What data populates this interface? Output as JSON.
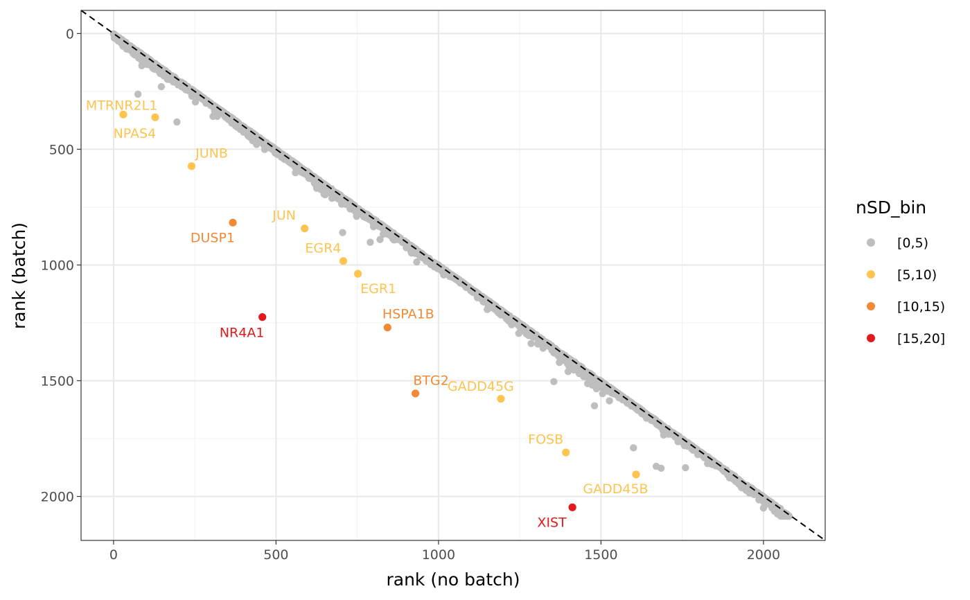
{
  "chart_data": {
    "type": "scatter",
    "title": "",
    "xlabel": "rank (no batch)",
    "ylabel": "rank (batch)",
    "xlim": [
      -100,
      2190
    ],
    "ylim": [
      -100,
      2190
    ],
    "y_reversed": true,
    "x_ticks": [
      0,
      500,
      1000,
      1500,
      2000
    ],
    "y_ticks": [
      0,
      500,
      1000,
      1500,
      2000
    ],
    "x_tick_labels": [
      "0",
      "500",
      "1000",
      "1500",
      "2000"
    ],
    "y_tick_labels": [
      "0",
      "500",
      "1000",
      "1500",
      "2000"
    ],
    "grid": true,
    "reference_line": {
      "type": "identity",
      "style": "dashed",
      "color": "#000000"
    },
    "legend": {
      "title": "nSD_bin",
      "position": "right",
      "entries": [
        {
          "label": "[0,5)",
          "color": "#BEBEBE"
        },
        {
          "label": "[5,10)",
          "color": "#FEC44F"
        },
        {
          "label": "[10,15)",
          "color": "#F28A35"
        },
        {
          "label": "[15,20]",
          "color": "#E31A1C"
        }
      ]
    },
    "background_series": {
      "bin": "[0,5)",
      "color": "#BEBEBE",
      "n_points": 2080,
      "description_free": true,
      "outliers": [
        {
          "x": 75,
          "y": 262
        },
        {
          "x": 195,
          "y": 382
        },
        {
          "x": 705,
          "y": 860
        },
        {
          "x": 790,
          "y": 902
        },
        {
          "x": 820,
          "y": 890
        },
        {
          "x": 1355,
          "y": 1504
        },
        {
          "x": 1480,
          "y": 1608
        },
        {
          "x": 1600,
          "y": 1790
        },
        {
          "x": 1670,
          "y": 1870
        },
        {
          "x": 1685,
          "y": 1878
        },
        {
          "x": 1760,
          "y": 1876
        },
        {
          "x": 2000,
          "y": 2050
        }
      ]
    },
    "labeled_points": [
      {
        "gene": "MTRNR2L1",
        "x": 30,
        "y": 350,
        "bin": "[5,10)",
        "color": "#FEC44F",
        "label_x": 25,
        "label_y": 308
      },
      {
        "gene": "NPAS4",
        "x": 128,
        "y": 362,
        "bin": "[5,10)",
        "color": "#FEC44F",
        "label_x": 65,
        "label_y": 430
      },
      {
        "gene": "JUNB",
        "x": 240,
        "y": 573,
        "bin": "[5,10)",
        "color": "#FEC44F",
        "label_x": 302,
        "label_y": 515
      },
      {
        "gene": "DUSP1",
        "x": 367,
        "y": 817,
        "bin": "[10,15)",
        "color": "#F28A35",
        "label_x": 305,
        "label_y": 880
      },
      {
        "gene": "JUN",
        "x": 588,
        "y": 842,
        "bin": "[5,10)",
        "color": "#FEC44F",
        "label_x": 525,
        "label_y": 783
      },
      {
        "gene": "EGR4",
        "x": 707,
        "y": 983,
        "bin": "[5,10)",
        "color": "#FEC44F",
        "label_x": 645,
        "label_y": 925
      },
      {
        "gene": "EGR1",
        "x": 752,
        "y": 1038,
        "bin": "[5,10)",
        "color": "#FEC44F",
        "label_x": 815,
        "label_y": 1100
      },
      {
        "gene": "NR4A1",
        "x": 458,
        "y": 1225,
        "bin": "[15,20]",
        "color": "#E31A1C",
        "label_x": 395,
        "label_y": 1290
      },
      {
        "gene": "HSPA1B",
        "x": 843,
        "y": 1270,
        "bin": "[10,15)",
        "color": "#F28A35",
        "label_x": 907,
        "label_y": 1210
      },
      {
        "gene": "BTG2",
        "x": 929,
        "y": 1555,
        "bin": "[10,15)",
        "color": "#F28A35",
        "label_x": 977,
        "label_y": 1497
      },
      {
        "gene": "GADD45G",
        "x": 1192,
        "y": 1578,
        "bin": "[5,10)",
        "color": "#FEC44F",
        "label_x": 1130,
        "label_y": 1522
      },
      {
        "gene": "FOSB",
        "x": 1392,
        "y": 1810,
        "bin": "[5,10)",
        "color": "#FEC44F",
        "label_x": 1330,
        "label_y": 1752
      },
      {
        "gene": "GADD45B",
        "x": 1608,
        "y": 1905,
        "bin": "[5,10)",
        "color": "#FEC44F",
        "label_x": 1545,
        "label_y": 1965
      },
      {
        "gene": "XIST",
        "x": 1412,
        "y": 2047,
        "bin": "[15,20]",
        "color": "#E31A1C",
        "label_x": 1349,
        "label_y": 2110
      }
    ]
  }
}
